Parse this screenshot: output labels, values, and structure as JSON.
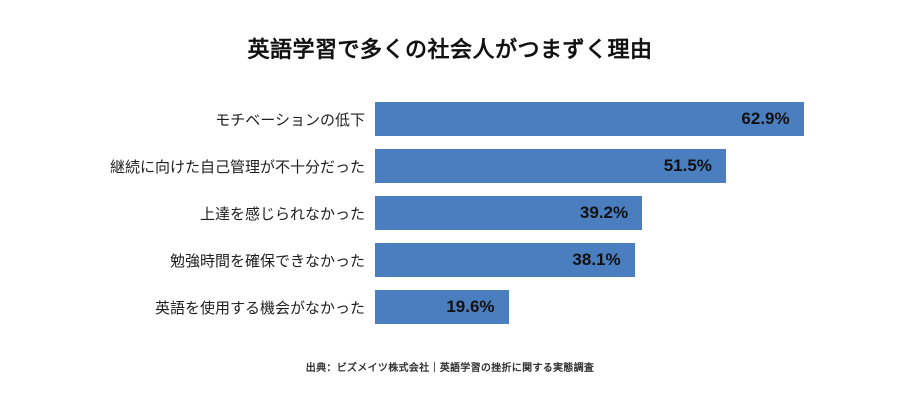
{
  "title": "英語学習で多くの社会人がつまずく理由",
  "source": "出典：ビズメイツ株式会社｜英語学習の挫折に関する実態調査",
  "colors": {
    "bar": "#4A7EBF",
    "value_text": "#111111",
    "label_text": "#1F1F1F",
    "background": "#FFFFFF"
  },
  "chart_data": {
    "type": "bar",
    "orientation": "horizontal",
    "title": "英語学習で多くの社会人がつまずく理由",
    "categories": [
      "モチベーションの低下",
      "継続に向けた自己管理が不十分だった",
      "上達を感じられなかった",
      "勉強時間を確保できなかった",
      "英語を使用する機会がなかった"
    ],
    "values": [
      62.9,
      51.5,
      39.2,
      38.1,
      19.6
    ],
    "value_labels": [
      "62.9%",
      "51.5%",
      "39.2%",
      "38.1%",
      "19.6%"
    ],
    "xlabel": "",
    "ylabel": "",
    "xlim": [
      0,
      70
    ],
    "grid": false,
    "legend": false,
    "value_label_position": "inside-end",
    "source": "出典：ビズメイツ株式会社｜英語学習の挫折に関する実態調査"
  }
}
